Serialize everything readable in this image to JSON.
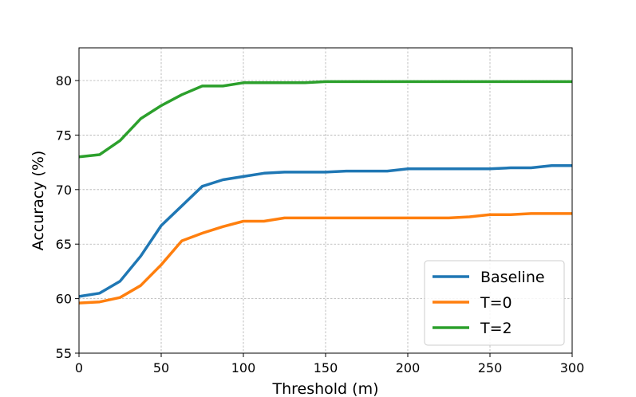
{
  "chart_data": {
    "type": "line",
    "title": "",
    "xlabel": "Threshold (m)",
    "ylabel": "Accuracy (%)",
    "xlim": [
      0,
      300
    ],
    "ylim": [
      55,
      83
    ],
    "xticks": [
      0,
      50,
      100,
      150,
      200,
      250,
      300
    ],
    "yticks": [
      55,
      60,
      65,
      70,
      75,
      80
    ],
    "grid": true,
    "legend_position": "lower-right",
    "x": [
      0,
      12.5,
      25,
      37.5,
      50,
      62.5,
      75,
      87.5,
      100,
      112.5,
      125,
      137.5,
      150,
      162.5,
      175,
      187.5,
      200,
      212.5,
      225,
      237.5,
      250,
      262.5,
      275,
      287.5,
      300
    ],
    "series": [
      {
        "name": "Baseline",
        "color": "#1f77b4",
        "values": [
          60.2,
          60.5,
          61.6,
          63.9,
          66.7,
          68.5,
          70.3,
          70.9,
          71.2,
          71.5,
          71.6,
          71.6,
          71.6,
          71.7,
          71.7,
          71.7,
          71.9,
          71.9,
          71.9,
          71.9,
          71.9,
          72.0,
          72.0,
          72.2,
          72.2
        ]
      },
      {
        "name": "T=0",
        "color": "#ff7f0e",
        "values": [
          59.6,
          59.7,
          60.1,
          61.2,
          63.1,
          65.3,
          66.0,
          66.6,
          67.1,
          67.1,
          67.4,
          67.4,
          67.4,
          67.4,
          67.4,
          67.4,
          67.4,
          67.4,
          67.4,
          67.5,
          67.7,
          67.7,
          67.8,
          67.8,
          67.8
        ]
      },
      {
        "name": "T=2",
        "color": "#2ca02c",
        "values": [
          73.0,
          73.2,
          74.5,
          76.5,
          77.7,
          78.7,
          79.5,
          79.5,
          79.8,
          79.8,
          79.8,
          79.8,
          79.9,
          79.9,
          79.9,
          79.9,
          79.9,
          79.9,
          79.9,
          79.9,
          79.9,
          79.9,
          79.9,
          79.9,
          79.9
        ]
      }
    ]
  }
}
